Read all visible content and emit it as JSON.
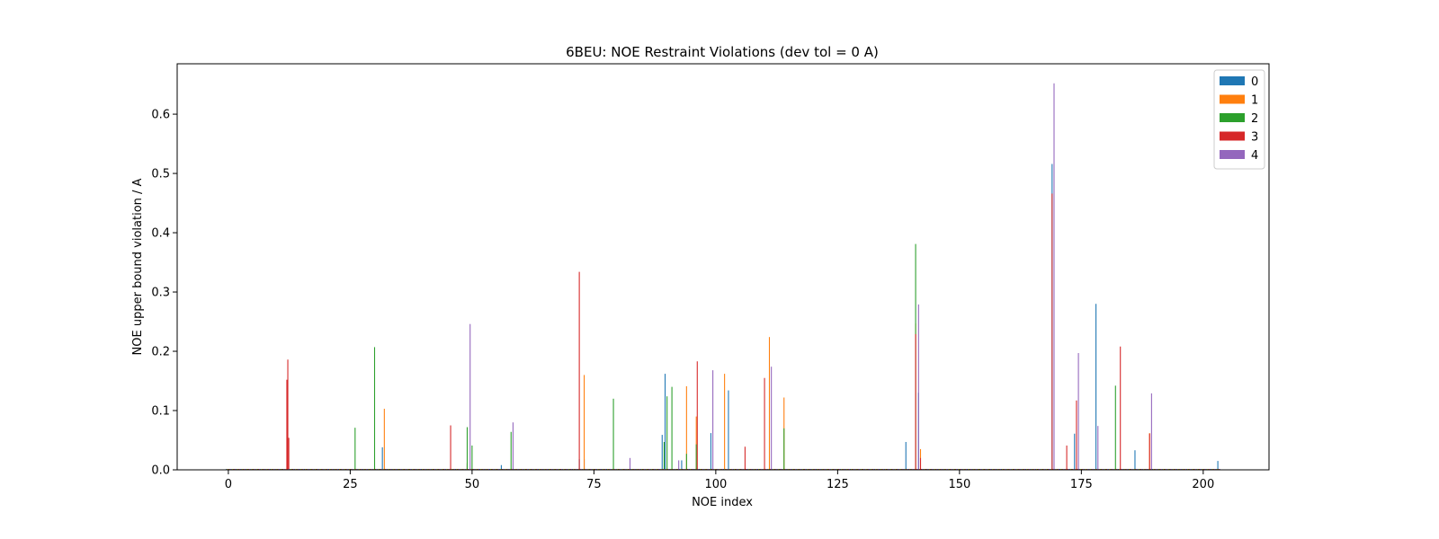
{
  "chart_data": {
    "type": "bar",
    "title": "6BEU: NOE Restraint Violations (dev tol = 0 A)",
    "xlabel": "NOE index",
    "ylabel": "NOE upper bound violation / A",
    "xlim": [
      -10.5,
      213.5
    ],
    "ylim": [
      0,
      0.685
    ],
    "xticks": [
      0,
      25,
      50,
      75,
      100,
      125,
      150,
      175,
      200
    ],
    "yticks": [
      0.0,
      0.1,
      0.2,
      0.3,
      0.4,
      0.5,
      0.6
    ],
    "legend_position": "top-right",
    "grid": false,
    "bar_offsets": [
      -0.4,
      -0.2,
      0.0,
      0.2,
      0.4
    ],
    "bar_width": 0.2,
    "series": [
      {
        "name": "0",
        "color": "#1f77b4",
        "points": [
          [
            31.6,
            0.038
          ],
          [
            49,
            0.01
          ],
          [
            56,
            0.008
          ],
          [
            72,
            0.018
          ],
          [
            73,
            0.018
          ],
          [
            89,
            0.059
          ],
          [
            89.6,
            0.162
          ],
          [
            93,
            0.016
          ],
          [
            99,
            0.062
          ],
          [
            102.6,
            0.134
          ],
          [
            139,
            0.047
          ],
          [
            141.6,
            0.13
          ],
          [
            169,
            0.516
          ],
          [
            173.6,
            0.061
          ],
          [
            178,
            0.28
          ],
          [
            186,
            0.033
          ],
          [
            203,
            0.015
          ]
        ]
      },
      {
        "name": "1",
        "color": "#ff7f0e",
        "points": [
          [
            32,
            0.103
          ],
          [
            49,
            0.012
          ],
          [
            73,
            0.16
          ],
          [
            94,
            0.141
          ],
          [
            96,
            0.09
          ],
          [
            101.8,
            0.162
          ],
          [
            111,
            0.224
          ],
          [
            114,
            0.122
          ],
          [
            141,
            0.247
          ],
          [
            142,
            0.035
          ],
          [
            189,
            0.062
          ]
        ]
      },
      {
        "name": "2",
        "color": "#2ca02c",
        "points": [
          [
            26,
            0.071
          ],
          [
            30,
            0.207
          ],
          [
            49,
            0.072
          ],
          [
            50,
            0.041
          ],
          [
            58,
            0.064
          ],
          [
            79,
            0.12
          ],
          [
            89.4,
            0.047
          ],
          [
            90,
            0.124
          ],
          [
            91,
            0.14
          ],
          [
            94,
            0.027
          ],
          [
            96,
            0.043
          ],
          [
            114,
            0.07
          ],
          [
            141,
            0.381
          ],
          [
            182,
            0.142
          ]
        ]
      },
      {
        "name": "3",
        "color": "#d62728",
        "points": [
          [
            12,
            0.152
          ],
          [
            12.2,
            0.186
          ],
          [
            12.4,
            0.054
          ],
          [
            45.6,
            0.075
          ],
          [
            72,
            0.334
          ],
          [
            96.2,
            0.183
          ],
          [
            106,
            0.039
          ],
          [
            110,
            0.155
          ],
          [
            141,
            0.229
          ],
          [
            142,
            0.02
          ],
          [
            169,
            0.466
          ],
          [
            172,
            0.041
          ],
          [
            174,
            0.117
          ],
          [
            183,
            0.208
          ],
          [
            189,
            0.061
          ]
        ]
      },
      {
        "name": "4",
        "color": "#9467bd",
        "points": [
          [
            49.6,
            0.246
          ],
          [
            58.4,
            0.08
          ],
          [
            82.4,
            0.02
          ],
          [
            92.4,
            0.016
          ],
          [
            99.4,
            0.168
          ],
          [
            111.4,
            0.174
          ],
          [
            141.6,
            0.279
          ],
          [
            169.4,
            0.652
          ],
          [
            174.4,
            0.197
          ],
          [
            178.4,
            0.074
          ],
          [
            189.4,
            0.129
          ]
        ]
      }
    ]
  }
}
